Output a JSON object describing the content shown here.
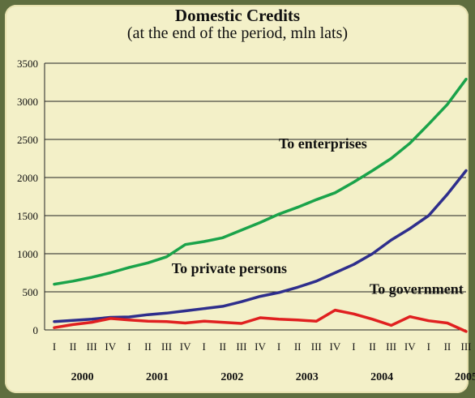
{
  "chart_data": {
    "type": "line",
    "title": "Domestic Credits",
    "subtitle": "(at the end of the period, mln lats)",
    "categories": [
      "I",
      "II",
      "III",
      "IV",
      "I",
      "II",
      "III",
      "IV",
      "I",
      "II",
      "III",
      "IV",
      "I",
      "II",
      "III",
      "IV",
      "I",
      "II",
      "III",
      "IV",
      "I",
      "II",
      "III"
    ],
    "years": [
      "2000",
      "2001",
      "2002",
      "2003",
      "2004",
      "2005"
    ],
    "ylim": [
      0,
      3500
    ],
    "yticks": [
      0,
      500,
      1000,
      1500,
      2000,
      2500,
      3000,
      3500
    ],
    "grid": true,
    "series": [
      {
        "name": "To enterprises",
        "color": "#1aa34a",
        "values": [
          600,
          640,
          690,
          750,
          820,
          880,
          960,
          1120,
          1160,
          1210,
          1310,
          1410,
          1520,
          1610,
          1710,
          1800,
          1940,
          2090,
          2250,
          2450,
          2700,
          2960,
          3290
        ]
      },
      {
        "name": "To private persons",
        "color": "#2e2e8c",
        "values": [
          110,
          125,
          140,
          165,
          170,
          200,
          220,
          250,
          280,
          310,
          370,
          440,
          490,
          560,
          640,
          750,
          860,
          1000,
          1180,
          1330,
          1500,
          1780,
          2090
        ]
      },
      {
        "name": "To government",
        "color": "#e02020",
        "values": [
          30,
          70,
          100,
          150,
          130,
          115,
          110,
          90,
          115,
          100,
          85,
          160,
          140,
          130,
          115,
          260,
          210,
          140,
          60,
          175,
          120,
          90,
          -20
        ]
      }
    ]
  }
}
